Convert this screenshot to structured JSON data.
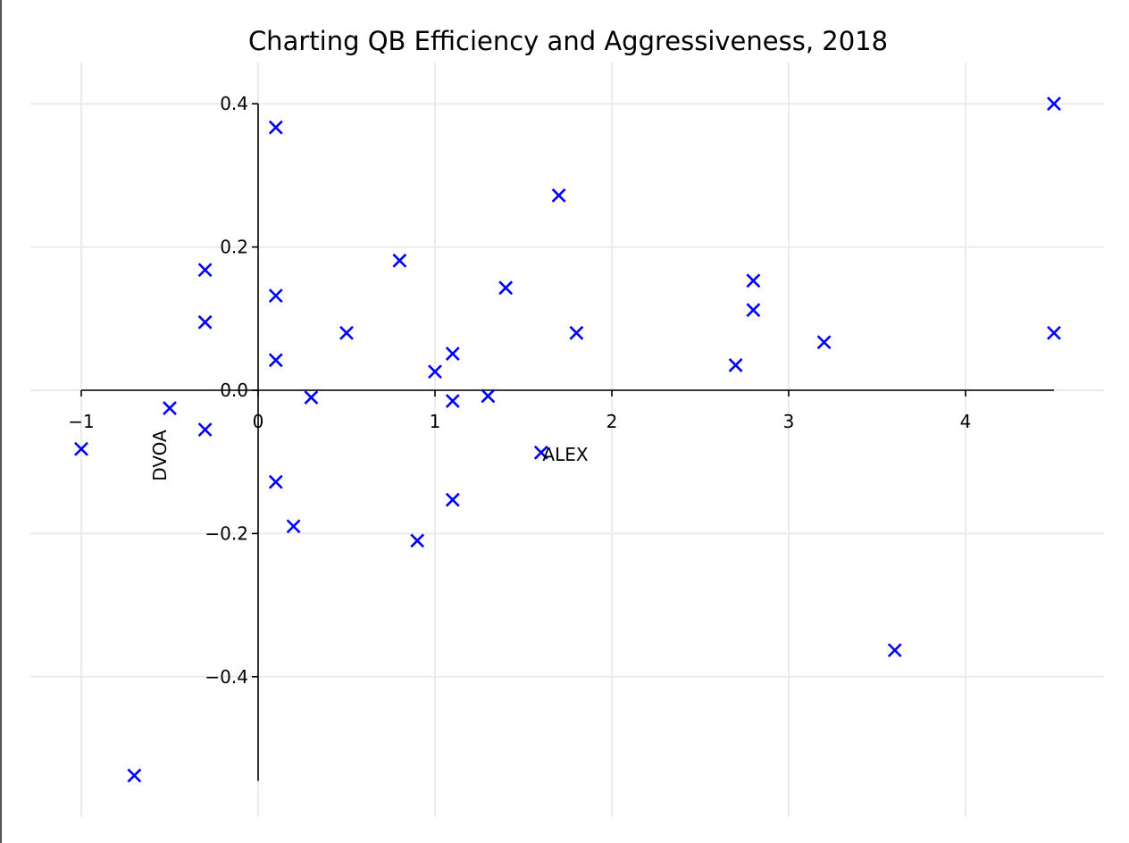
{
  "chart_data": {
    "type": "scatter",
    "title": "Charting QB Efficiency and Aggressiveness, 2018",
    "xlabel": "ALEX",
    "ylabel": "DVOA",
    "xlim": [
      -1.1,
      4.8
    ],
    "ylim": [
      -0.59,
      0.44
    ],
    "x_ticks": [
      -1,
      0,
      1,
      2,
      3,
      4
    ],
    "x_tick_labels": [
      "−1",
      "0",
      "1",
      "2",
      "3",
      "4"
    ],
    "y_ticks": [
      -0.4,
      -0.2,
      0.0,
      0.2,
      0.4
    ],
    "y_tick_labels": [
      "−0.4",
      "−0.2",
      "0.0",
      "0.2",
      "0.4"
    ],
    "grid": true,
    "marker": "x",
    "color": "#0000ff",
    "grid_color": "#ebebeb",
    "points": [
      {
        "x": -1.0,
        "y": -0.082
      },
      {
        "x": -0.7,
        "y": -0.538
      },
      {
        "x": -0.5,
        "y": -0.025
      },
      {
        "x": -0.3,
        "y": 0.168
      },
      {
        "x": -0.3,
        "y": 0.095
      },
      {
        "x": -0.3,
        "y": -0.055
      },
      {
        "x": 0.1,
        "y": 0.367
      },
      {
        "x": 0.1,
        "y": 0.132
      },
      {
        "x": 0.1,
        "y": 0.042
      },
      {
        "x": 0.1,
        "y": -0.128
      },
      {
        "x": 0.2,
        "y": -0.19
      },
      {
        "x": 0.3,
        "y": -0.01
      },
      {
        "x": 0.5,
        "y": 0.08
      },
      {
        "x": 0.8,
        "y": 0.181
      },
      {
        "x": 0.9,
        "y": -0.21
      },
      {
        "x": 1.0,
        "y": 0.026
      },
      {
        "x": 1.1,
        "y": 0.051
      },
      {
        "x": 1.1,
        "y": -0.015
      },
      {
        "x": 1.1,
        "y": -0.153
      },
      {
        "x": 1.3,
        "y": -0.008
      },
      {
        "x": 1.4,
        "y": 0.143
      },
      {
        "x": 1.6,
        "y": -0.087
      },
      {
        "x": 1.7,
        "y": 0.272
      },
      {
        "x": 1.8,
        "y": 0.08
      },
      {
        "x": 2.7,
        "y": 0.035
      },
      {
        "x": 2.8,
        "y": 0.153
      },
      {
        "x": 2.8,
        "y": 0.112
      },
      {
        "x": 3.2,
        "y": 0.067
      },
      {
        "x": 3.6,
        "y": -0.363
      },
      {
        "x": 4.5,
        "y": 0.4
      },
      {
        "x": 4.5,
        "y": 0.08
      }
    ]
  }
}
